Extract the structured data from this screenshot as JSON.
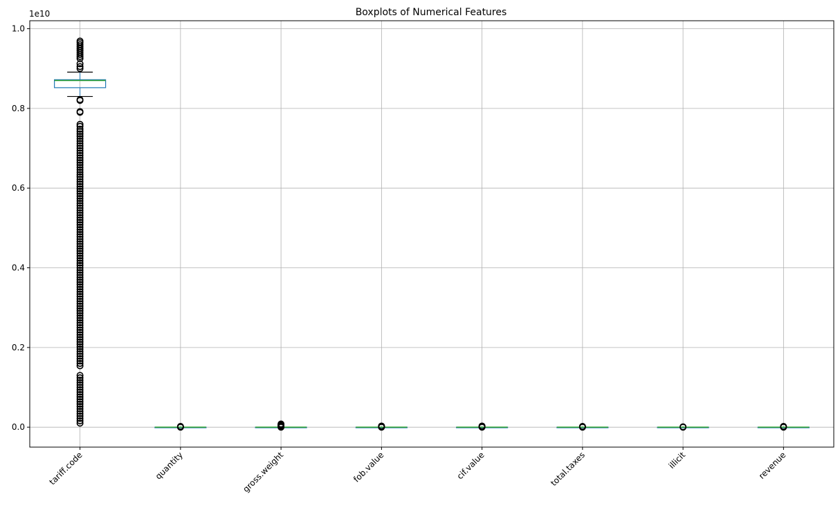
{
  "chart_data": {
    "type": "boxplot",
    "title": "Boxplots of Numerical Features",
    "xlabel": "",
    "ylabel": "",
    "y_offset_label": "1e10",
    "y_scale": 10000000000,
    "ylim": [
      -0.05,
      1.02
    ],
    "yticks": [
      0.0,
      0.2,
      0.4,
      0.6,
      0.8,
      1.0
    ],
    "ytick_labels": [
      "0.0",
      "0.2",
      "0.4",
      "0.6",
      "0.8",
      "1.0"
    ],
    "grid": true,
    "categories": [
      "tariff.code",
      "quantity",
      "gross.weight",
      "fob.value",
      "cif.value",
      "total.taxes",
      "illicit",
      "revenue"
    ],
    "box_color": "#1f77b4",
    "median_color": "#2ca02c",
    "series": [
      {
        "q1": 0.852,
        "median": 0.87,
        "q3": 0.872,
        "whisker_low": 0.83,
        "whisker_high": 0.891,
        "outliers": [
          0.969,
          0.965,
          0.96,
          0.955,
          0.95,
          0.945,
          0.94,
          0.935,
          0.93,
          0.925,
          0.912,
          0.905,
          0.9,
          0.822,
          0.82,
          0.792,
          0.79,
          0.76,
          0.755,
          0.748,
          0.742,
          0.736,
          0.73,
          0.724,
          0.718,
          0.712,
          0.706,
          0.7,
          0.694,
          0.688,
          0.682,
          0.676,
          0.67,
          0.664,
          0.658,
          0.652,
          0.646,
          0.64,
          0.634,
          0.628,
          0.622,
          0.616,
          0.61,
          0.604,
          0.598,
          0.592,
          0.586,
          0.58,
          0.574,
          0.568,
          0.562,
          0.556,
          0.55,
          0.544,
          0.538,
          0.532,
          0.526,
          0.52,
          0.514,
          0.508,
          0.502,
          0.496,
          0.49,
          0.484,
          0.478,
          0.472,
          0.466,
          0.46,
          0.454,
          0.448,
          0.442,
          0.436,
          0.43,
          0.424,
          0.418,
          0.412,
          0.406,
          0.4,
          0.394,
          0.388,
          0.382,
          0.376,
          0.37,
          0.364,
          0.358,
          0.352,
          0.346,
          0.34,
          0.334,
          0.328,
          0.322,
          0.316,
          0.31,
          0.304,
          0.298,
          0.292,
          0.286,
          0.28,
          0.274,
          0.268,
          0.262,
          0.256,
          0.25,
          0.244,
          0.238,
          0.232,
          0.226,
          0.22,
          0.214,
          0.208,
          0.202,
          0.196,
          0.19,
          0.184,
          0.178,
          0.172,
          0.166,
          0.16,
          0.154,
          0.13,
          0.124,
          0.118,
          0.112,
          0.106,
          0.1,
          0.094,
          0.088,
          0.082,
          0.076,
          0.07,
          0.064,
          0.058,
          0.052,
          0.046,
          0.04,
          0.034,
          0.028,
          0.022,
          0.016,
          0.01
        ]
      },
      {
        "q1": 0.0,
        "median": 0.0,
        "q3": 0.0,
        "whisker_low": 0.0,
        "whisker_high": 0.0,
        "outliers": [
          0.0,
          0.001,
          0.002
        ]
      },
      {
        "q1": 0.0,
        "median": 0.0,
        "q3": 0.0,
        "whisker_low": 0.0,
        "whisker_high": 0.0,
        "outliers": [
          0.0,
          0.002,
          0.004,
          0.006,
          0.008
        ]
      },
      {
        "q1": 0.0,
        "median": 0.0,
        "q3": 0.0,
        "whisker_low": 0.0,
        "whisker_high": 0.0,
        "outliers": [
          0.0,
          0.001,
          0.002,
          0.003
        ]
      },
      {
        "q1": 0.0,
        "median": 0.0,
        "q3": 0.0,
        "whisker_low": 0.0,
        "whisker_high": 0.0,
        "outliers": [
          0.0,
          0.001,
          0.002,
          0.003
        ]
      },
      {
        "q1": 0.0,
        "median": 0.0,
        "q3": 0.0,
        "whisker_low": 0.0,
        "whisker_high": 0.0,
        "outliers": [
          0.0,
          0.001,
          0.002
        ]
      },
      {
        "q1": 0.0,
        "median": 0.0,
        "q3": 0.0,
        "whisker_low": 0.0,
        "whisker_high": 0.0,
        "outliers": [
          0.0,
          0.001
        ]
      },
      {
        "q1": 0.0,
        "median": 0.0,
        "q3": 0.0,
        "whisker_low": 0.0,
        "whisker_high": 0.0,
        "outliers": [
          0.0,
          0.001,
          0.002
        ]
      }
    ]
  }
}
